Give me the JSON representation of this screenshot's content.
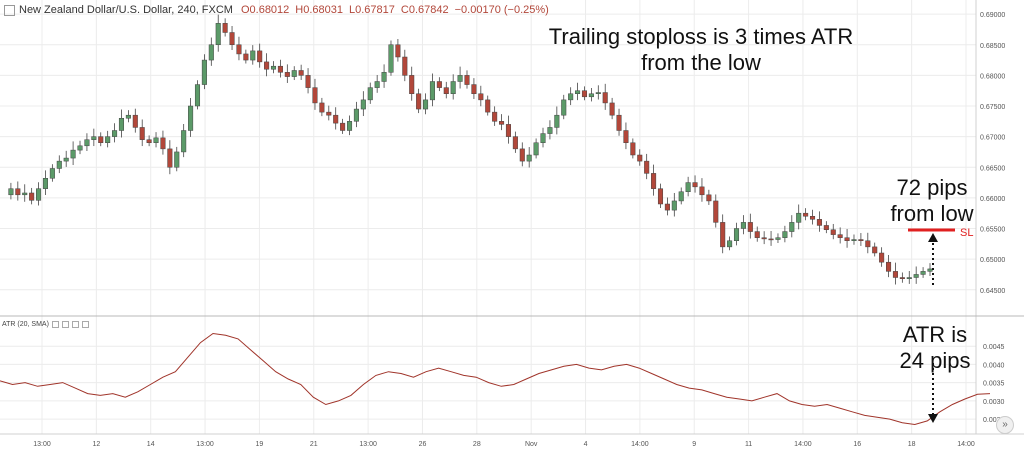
{
  "header": {
    "symbol": "New Zealand Dollar/U.S. Dollar, 240, FXCM",
    "open": "O0.68012",
    "high": "H0.68031",
    "low": "L0.67817",
    "close": "C0.67842",
    "change": "−0.00170 (−0.25%)"
  },
  "atr_header": {
    "label": "ATR (20, SMA)"
  },
  "annotations": {
    "trailing_line1": "Trailing stoploss is 3 times ATR",
    "trailing_line2": "from the low",
    "pips72_line1": "72 pips",
    "pips72_line2": "from low",
    "sl_label": "SL",
    "atr_line1": "ATR is",
    "atr_line2": "24 pips"
  },
  "colors": {
    "up": "#5b9a68",
    "down": "#b2473a",
    "sl": "#e02020",
    "atr": "#a0342a",
    "grid": "#ececec"
  },
  "nav_button": "»",
  "chart_data": [
    {
      "type": "candlestick",
      "title": "New Zealand Dollar/U.S. Dollar, 240, FXCM",
      "ylim": [
        0.643,
        0.691
      ],
      "y_ticks": [
        "0.69000",
        "0.68500",
        "0.68000",
        "0.67500",
        "0.67000",
        "0.66500",
        "0.66000",
        "0.65500",
        "0.65000",
        "0.64500"
      ],
      "x_labels": [
        "13:00",
        "12",
        "14",
        "13:00",
        "19",
        "21",
        "13:00",
        "26",
        "28",
        "Nov",
        "4",
        "14:00",
        "9",
        "11",
        "14:00",
        "16",
        "18",
        "14:00"
      ],
      "close_path": [
        0.6605,
        0.6615,
        0.6605,
        0.6608,
        0.6596,
        0.6615,
        0.6632,
        0.6648,
        0.666,
        0.6665,
        0.6678,
        0.6685,
        0.6695,
        0.67,
        0.669,
        0.67,
        0.671,
        0.673,
        0.6735,
        0.6715,
        0.6695,
        0.669,
        0.6698,
        0.668,
        0.665,
        0.6675,
        0.671,
        0.675,
        0.6785,
        0.6825,
        0.685,
        0.6885,
        0.687,
        0.685,
        0.6835,
        0.6825,
        0.684,
        0.6822,
        0.681,
        0.6815,
        0.6805,
        0.6798,
        0.6808,
        0.68,
        0.678,
        0.6755,
        0.674,
        0.6735,
        0.6722,
        0.671,
        0.6725,
        0.6745,
        0.676,
        0.678,
        0.679,
        0.6805,
        0.685,
        0.683,
        0.68,
        0.677,
        0.6745,
        0.676,
        0.679,
        0.678,
        0.677,
        0.679,
        0.68,
        0.6785,
        0.677,
        0.676,
        0.674,
        0.6725,
        0.672,
        0.67,
        0.668,
        0.666,
        0.667,
        0.669,
        0.6705,
        0.6715,
        0.6735,
        0.676,
        0.677,
        0.6775,
        0.6765,
        0.677,
        0.6772,
        0.6755,
        0.6735,
        0.671,
        0.669,
        0.667,
        0.666,
        0.664,
        0.6615,
        0.659,
        0.658,
        0.6595,
        0.661,
        0.6625,
        0.6618,
        0.6605,
        0.6595,
        0.656,
        0.652,
        0.653,
        0.655,
        0.656,
        0.6545,
        0.6535,
        0.6533,
        0.6532,
        0.6535,
        0.6545,
        0.656,
        0.6575,
        0.657,
        0.6565,
        0.6555,
        0.6548,
        0.654,
        0.6535,
        0.653,
        0.6532,
        0.653,
        0.652,
        0.651,
        0.6495,
        0.648,
        0.647,
        0.6468,
        0.647,
        0.6475,
        0.648,
        0.6484
      ]
    },
    {
      "type": "line",
      "title": "ATR (20, SMA)",
      "ylim": [
        0.0022,
        0.005
      ],
      "y_ticks": [
        "0.0045",
        "0.0040",
        "0.0035",
        "0.0030",
        "0.0025"
      ],
      "values": [
        0.00355,
        0.00345,
        0.0035,
        0.0034,
        0.00345,
        0.0035,
        0.00335,
        0.0032,
        0.00315,
        0.0032,
        0.0031,
        0.00325,
        0.00345,
        0.00365,
        0.0038,
        0.0042,
        0.0046,
        0.00485,
        0.0048,
        0.0047,
        0.0044,
        0.0041,
        0.0038,
        0.0036,
        0.00345,
        0.0031,
        0.0029,
        0.003,
        0.00315,
        0.00345,
        0.0037,
        0.0038,
        0.00375,
        0.00365,
        0.0038,
        0.0039,
        0.0038,
        0.0037,
        0.00365,
        0.0035,
        0.0034,
        0.00345,
        0.0036,
        0.00375,
        0.00385,
        0.00395,
        0.004,
        0.0039,
        0.00385,
        0.00395,
        0.004,
        0.0039,
        0.00375,
        0.0036,
        0.00345,
        0.00335,
        0.0033,
        0.0032,
        0.0031,
        0.00305,
        0.003,
        0.0031,
        0.0032,
        0.003,
        0.0029,
        0.00285,
        0.0029,
        0.0028,
        0.0027,
        0.0026,
        0.00255,
        0.0025,
        0.0024,
        0.00235,
        0.00245,
        0.0027,
        0.0029,
        0.00305,
        0.00318,
        0.0032
      ]
    }
  ]
}
